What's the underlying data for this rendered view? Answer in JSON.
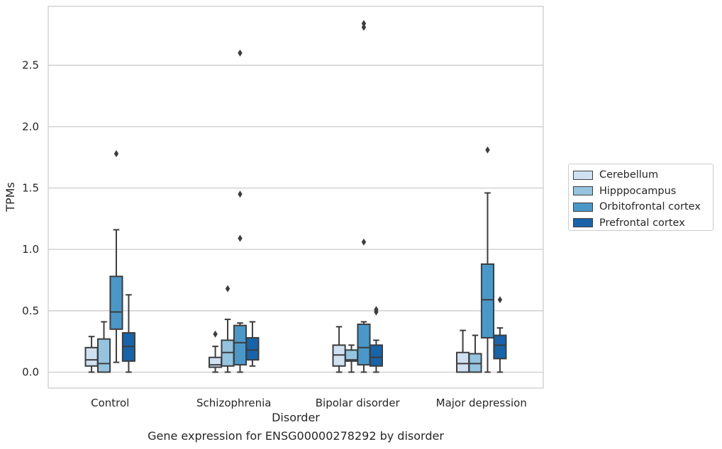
{
  "chart_data": {
    "type": "box",
    "xlabel": "Disorder",
    "ylabel": "TPMs",
    "caption": "Gene expression for ENSG00000278292 by disorder",
    "categories": [
      "Control",
      "Schizophrenia",
      "Bipolar disorder",
      "Major depression"
    ],
    "ylim": [
      -0.13,
      2.98
    ],
    "yticks": [
      "0.0",
      "0.5",
      "1.0",
      "1.5",
      "2.0",
      "2.5"
    ],
    "grid": "horizontal",
    "legend_position": "right",
    "series": [
      {
        "name": "Cerebellum",
        "color": "#d0e1f2",
        "boxes": [
          {
            "whislo": 0.0,
            "q1": 0.05,
            "med": 0.1,
            "q3": 0.2,
            "whishi": 0.29,
            "fliers": []
          },
          {
            "whislo": 0.0,
            "q1": 0.04,
            "med": 0.06,
            "q3": 0.12,
            "whishi": 0.21,
            "fliers": [
              0.31
            ]
          },
          {
            "whislo": 0.0,
            "q1": 0.05,
            "med": 0.14,
            "q3": 0.22,
            "whishi": 0.37,
            "fliers": []
          },
          {
            "whislo": 0.0,
            "q1": 0.0,
            "med": 0.07,
            "q3": 0.16,
            "whishi": 0.34,
            "fliers": []
          }
        ]
      },
      {
        "name": "Hipppocampus",
        "color": "#94c4df",
        "boxes": [
          {
            "whislo": 0.0,
            "q1": 0.0,
            "med": 0.07,
            "q3": 0.27,
            "whishi": 0.41,
            "fliers": []
          },
          {
            "whislo": 0.0,
            "q1": 0.05,
            "med": 0.16,
            "q3": 0.26,
            "whishi": 0.43,
            "fliers": [
              0.68
            ]
          },
          {
            "whislo": 0.0,
            "q1": 0.09,
            "med": 0.1,
            "q3": 0.18,
            "whishi": 0.22,
            "fliers": []
          },
          {
            "whislo": 0.0,
            "q1": 0.0,
            "med": 0.07,
            "q3": 0.15,
            "whishi": 0.3,
            "fliers": []
          }
        ]
      },
      {
        "name": "Orbitofrontal cortex",
        "color": "#4a98c9",
        "boxes": [
          {
            "whislo": 0.08,
            "q1": 0.35,
            "med": 0.49,
            "q3": 0.78,
            "whishi": 1.16,
            "fliers": [
              1.78
            ]
          },
          {
            "whislo": 0.0,
            "q1": 0.06,
            "med": 0.24,
            "q3": 0.38,
            "whishi": 0.4,
            "fliers": [
              1.09,
              1.45,
              2.6
            ]
          },
          {
            "whislo": 0.0,
            "q1": 0.06,
            "med": 0.2,
            "q3": 0.39,
            "whishi": 0.41,
            "fliers": [
              1.06,
              2.81,
              2.84
            ]
          },
          {
            "whislo": 0.0,
            "q1": 0.28,
            "med": 0.59,
            "q3": 0.88,
            "whishi": 1.46,
            "fliers": [
              1.81
            ]
          }
        ]
      },
      {
        "name": "Prefrontal cortex",
        "color": "#1764ab",
        "boxes": [
          {
            "whislo": 0.0,
            "q1": 0.09,
            "med": 0.21,
            "q3": 0.32,
            "whishi": 0.63,
            "fliers": []
          },
          {
            "whislo": 0.05,
            "q1": 0.1,
            "med": 0.18,
            "q3": 0.28,
            "whishi": 0.41,
            "fliers": []
          },
          {
            "whislo": 0.0,
            "q1": 0.05,
            "med": 0.12,
            "q3": 0.22,
            "whishi": 0.26,
            "fliers": [
              0.49,
              0.51
            ]
          },
          {
            "whislo": 0.0,
            "q1": 0.11,
            "med": 0.22,
            "q3": 0.3,
            "whishi": 0.36,
            "fliers": [
              0.59
            ]
          }
        ]
      }
    ]
  }
}
